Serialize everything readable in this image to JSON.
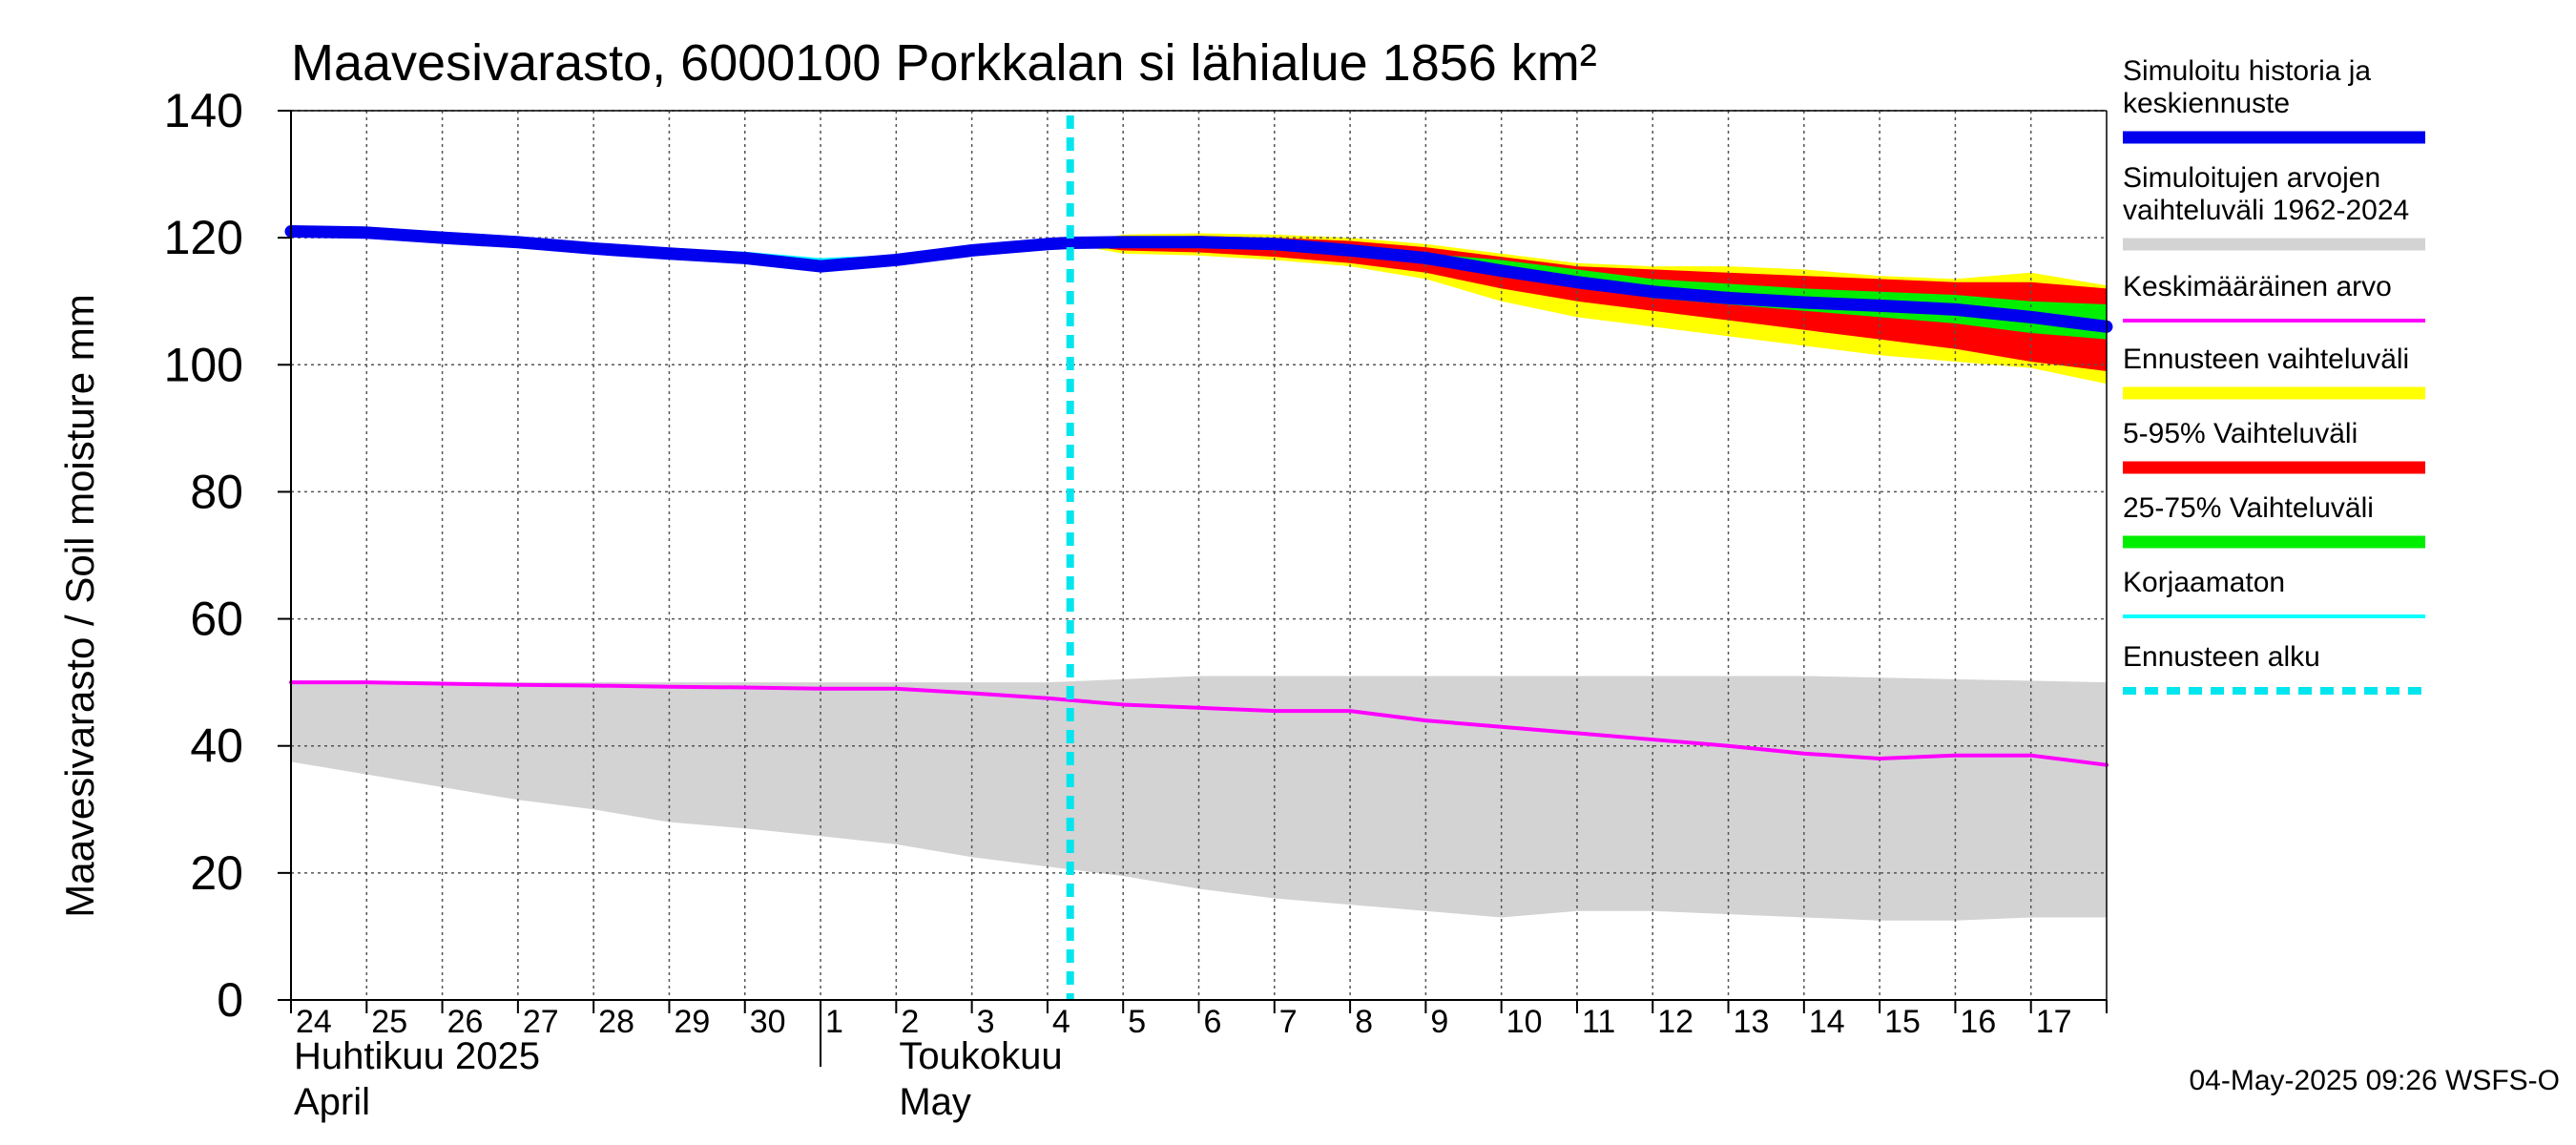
{
  "chart_data": {
    "type": "area",
    "title": "Maavesivarasto, 6000100 Porkkalan si lähialue 1856 km²",
    "ylabel": "Maavesivarasto / Soil moisture   mm",
    "ylim": [
      0,
      140
    ],
    "yticks": [
      0,
      20,
      40,
      60,
      80,
      100,
      120,
      140
    ],
    "grid": true,
    "x_days": [
      "24",
      "25",
      "26",
      "27",
      "28",
      "29",
      "30",
      "1",
      "2",
      "3",
      "4",
      "5",
      "6",
      "7",
      "8",
      "9",
      "10",
      "11",
      "12",
      "13",
      "14",
      "15",
      "16",
      "17"
    ],
    "x_range": [
      0,
      24
    ],
    "month_labels": [
      {
        "line1": "Huhtikuu  2025",
        "line2": "April",
        "day_index": 0
      },
      {
        "line1": "Toukokuu",
        "line2": "May",
        "day_index": 8
      }
    ],
    "forecast_start": 10.3,
    "series": [
      {
        "name": "Simuloitujen arvojen vaihteluväli 1962-2024",
        "kind": "band",
        "color": "#d3d3d3",
        "upper": [
          [
            0,
            50
          ],
          [
            4,
            50
          ],
          [
            8,
            50
          ],
          [
            10,
            50
          ],
          [
            12,
            51
          ],
          [
            16,
            51
          ],
          [
            20,
            51
          ],
          [
            24,
            50
          ]
        ],
        "lower": [
          [
            0,
            37.5
          ],
          [
            1,
            35.5
          ],
          [
            2,
            33.5
          ],
          [
            3,
            31.5
          ],
          [
            4,
            30
          ],
          [
            5,
            28
          ],
          [
            6,
            27
          ],
          [
            7,
            25.8
          ],
          [
            8,
            24.5
          ],
          [
            9,
            22.5
          ],
          [
            10,
            21
          ],
          [
            11,
            19.5
          ],
          [
            12,
            17.5
          ],
          [
            13,
            16
          ],
          [
            14,
            15
          ],
          [
            15,
            14
          ],
          [
            16,
            13
          ],
          [
            17,
            14
          ],
          [
            18,
            14
          ],
          [
            19,
            13.5
          ],
          [
            20,
            13
          ],
          [
            21,
            12.5
          ],
          [
            22,
            12.5
          ],
          [
            23,
            13
          ],
          [
            24,
            13
          ]
        ]
      },
      {
        "name": "Ennusteen vaihteluväli",
        "kind": "band",
        "color": "#ffff00",
        "upper": [
          [
            10.3,
            119
          ],
          [
            11,
            120.5
          ],
          [
            12,
            120.7
          ],
          [
            13,
            120.5
          ],
          [
            14,
            120
          ],
          [
            15,
            119
          ],
          [
            16,
            117.5
          ],
          [
            17,
            116
          ],
          [
            18,
            115.5
          ],
          [
            19,
            115.5
          ],
          [
            20,
            115
          ],
          [
            21,
            114
          ],
          [
            22,
            113.5
          ],
          [
            23,
            114.5
          ],
          [
            24,
            112.5
          ]
        ],
        "lower": [
          [
            10.3,
            119
          ],
          [
            11,
            117.5
          ],
          [
            12,
            117.2
          ],
          [
            13,
            116.5
          ],
          [
            14,
            115.5
          ],
          [
            15,
            113.5
          ],
          [
            16,
            110
          ],
          [
            17,
            107.5
          ],
          [
            18,
            106
          ],
          [
            19,
            104.5
          ],
          [
            20,
            103
          ],
          [
            21,
            101.5
          ],
          [
            22,
            100.5
          ],
          [
            23,
            99.5
          ],
          [
            24,
            97
          ]
        ]
      },
      {
        "name": "5-95% Vaihteluväli",
        "kind": "band",
        "color": "#ff0000",
        "upper": [
          [
            10.3,
            119
          ],
          [
            11,
            120
          ],
          [
            12,
            120.3
          ],
          [
            13,
            120
          ],
          [
            14,
            119.5
          ],
          [
            15,
            118.5
          ],
          [
            16,
            117
          ],
          [
            17,
            115.5
          ],
          [
            18,
            115
          ],
          [
            19,
            114.5
          ],
          [
            20,
            114
          ],
          [
            21,
            113.5
          ],
          [
            22,
            113
          ],
          [
            23,
            113
          ],
          [
            24,
            112
          ]
        ],
        "lower": [
          [
            10.3,
            119
          ],
          [
            11,
            118
          ],
          [
            12,
            117.7
          ],
          [
            13,
            117
          ],
          [
            14,
            116
          ],
          [
            15,
            114.5
          ],
          [
            16,
            112
          ],
          [
            17,
            110
          ],
          [
            18,
            108.5
          ],
          [
            19,
            107
          ],
          [
            20,
            105.5
          ],
          [
            21,
            104
          ],
          [
            22,
            102.5
          ],
          [
            23,
            100.5
          ],
          [
            24,
            99
          ]
        ]
      },
      {
        "name": "25-75% Vaihteluväli",
        "kind": "band",
        "color": "#00ee00",
        "upper": [
          [
            10.3,
            119
          ],
          [
            12,
            119.3
          ],
          [
            14,
            118.5
          ],
          [
            16,
            116.5
          ],
          [
            18,
            113.5
          ],
          [
            20,
            112
          ],
          [
            22,
            111
          ],
          [
            23,
            110
          ],
          [
            24,
            109.5
          ]
        ],
        "lower": [
          [
            10.3,
            119
          ],
          [
            12,
            118.7
          ],
          [
            14,
            117.5
          ],
          [
            16,
            114.5
          ],
          [
            18,
            110.5
          ],
          [
            20,
            108.5
          ],
          [
            22,
            106.5
          ],
          [
            23,
            105
          ],
          [
            24,
            104
          ]
        ]
      },
      {
        "name": "Keskimääräinen arvo",
        "kind": "line",
        "color": "#ff00ff",
        "width": 4,
        "points": [
          [
            0,
            50
          ],
          [
            1,
            50
          ],
          [
            2,
            49.8
          ],
          [
            3,
            49.6
          ],
          [
            4,
            49.5
          ],
          [
            5,
            49.3
          ],
          [
            6,
            49.2
          ],
          [
            7,
            49
          ],
          [
            8,
            49
          ],
          [
            9,
            48.3
          ],
          [
            10,
            47.5
          ],
          [
            11,
            46.5
          ],
          [
            12,
            46
          ],
          [
            13,
            45.5
          ],
          [
            14,
            45.5
          ],
          [
            15,
            44
          ],
          [
            16,
            43
          ],
          [
            17,
            42
          ],
          [
            18,
            41
          ],
          [
            19,
            40
          ],
          [
            20,
            38.8
          ],
          [
            21,
            38
          ],
          [
            22,
            38.5
          ],
          [
            23,
            38.5
          ],
          [
            24,
            37
          ]
        ]
      },
      {
        "name": "Korjaamaton",
        "kind": "line",
        "color": "#00ffff",
        "width": 4,
        "points": [
          [
            0,
            120.5
          ],
          [
            1,
            120.5
          ],
          [
            2,
            119.8
          ],
          [
            3,
            119.2
          ],
          [
            4,
            118.6
          ],
          [
            5,
            118
          ],
          [
            6,
            117.5
          ],
          [
            7,
            116.5
          ],
          [
            8,
            117
          ],
          [
            9,
            118.2
          ],
          [
            10,
            119
          ],
          [
            10.3,
            119.2
          ]
        ]
      },
      {
        "name": "Simuloitu historia ja keskiennuste",
        "kind": "line",
        "color": "#0000ee",
        "width": 13,
        "points": [
          [
            0,
            121
          ],
          [
            1,
            120.8
          ],
          [
            2,
            120
          ],
          [
            3,
            119.3
          ],
          [
            4,
            118.3
          ],
          [
            5,
            117.5
          ],
          [
            6,
            116.8
          ],
          [
            7,
            115.5
          ],
          [
            8,
            116.5
          ],
          [
            9,
            118
          ],
          [
            10,
            119
          ],
          [
            10.3,
            119.2
          ],
          [
            11,
            119.3
          ],
          [
            12,
            119.3
          ],
          [
            13,
            119
          ],
          [
            14,
            118
          ],
          [
            15,
            116.8
          ],
          [
            16,
            114.8
          ],
          [
            17,
            113
          ],
          [
            18,
            111.5
          ],
          [
            19,
            110.5
          ],
          [
            20,
            109.8
          ],
          [
            21,
            109.3
          ],
          [
            22,
            108.7
          ],
          [
            23,
            107.5
          ],
          [
            24,
            106
          ]
        ]
      }
    ],
    "forecast_line": {
      "name": "Ennusteen alku",
      "color": "#00e5ee"
    },
    "legend": [
      {
        "label": "Simuloitu historia ja keskiennuste",
        "color": "#0000ee",
        "style": "thick"
      },
      {
        "label": "Simuloitujen arvojen vaihteluväli 1962-2024",
        "color": "#d3d3d3",
        "style": "thick"
      },
      {
        "label": "Keskimääräinen arvo",
        "color": "#ff00ff",
        "style": "thin"
      },
      {
        "label": "Ennusteen vaihteluväli",
        "color": "#ffff00",
        "style": "thick"
      },
      {
        "label": "5-95% Vaihteluväli",
        "color": "#ff0000",
        "style": "thick"
      },
      {
        "label": "25-75% Vaihteluväli",
        "color": "#00ee00",
        "style": "thick"
      },
      {
        "label": "Korjaamaton",
        "color": "#00ffff",
        "style": "thin"
      },
      {
        "label": "Ennusteen alku",
        "color": "#00e5ee",
        "style": "dashed"
      }
    ],
    "legend_position": "right",
    "footer": "04-May-2025 09:26 WSFS-O"
  }
}
